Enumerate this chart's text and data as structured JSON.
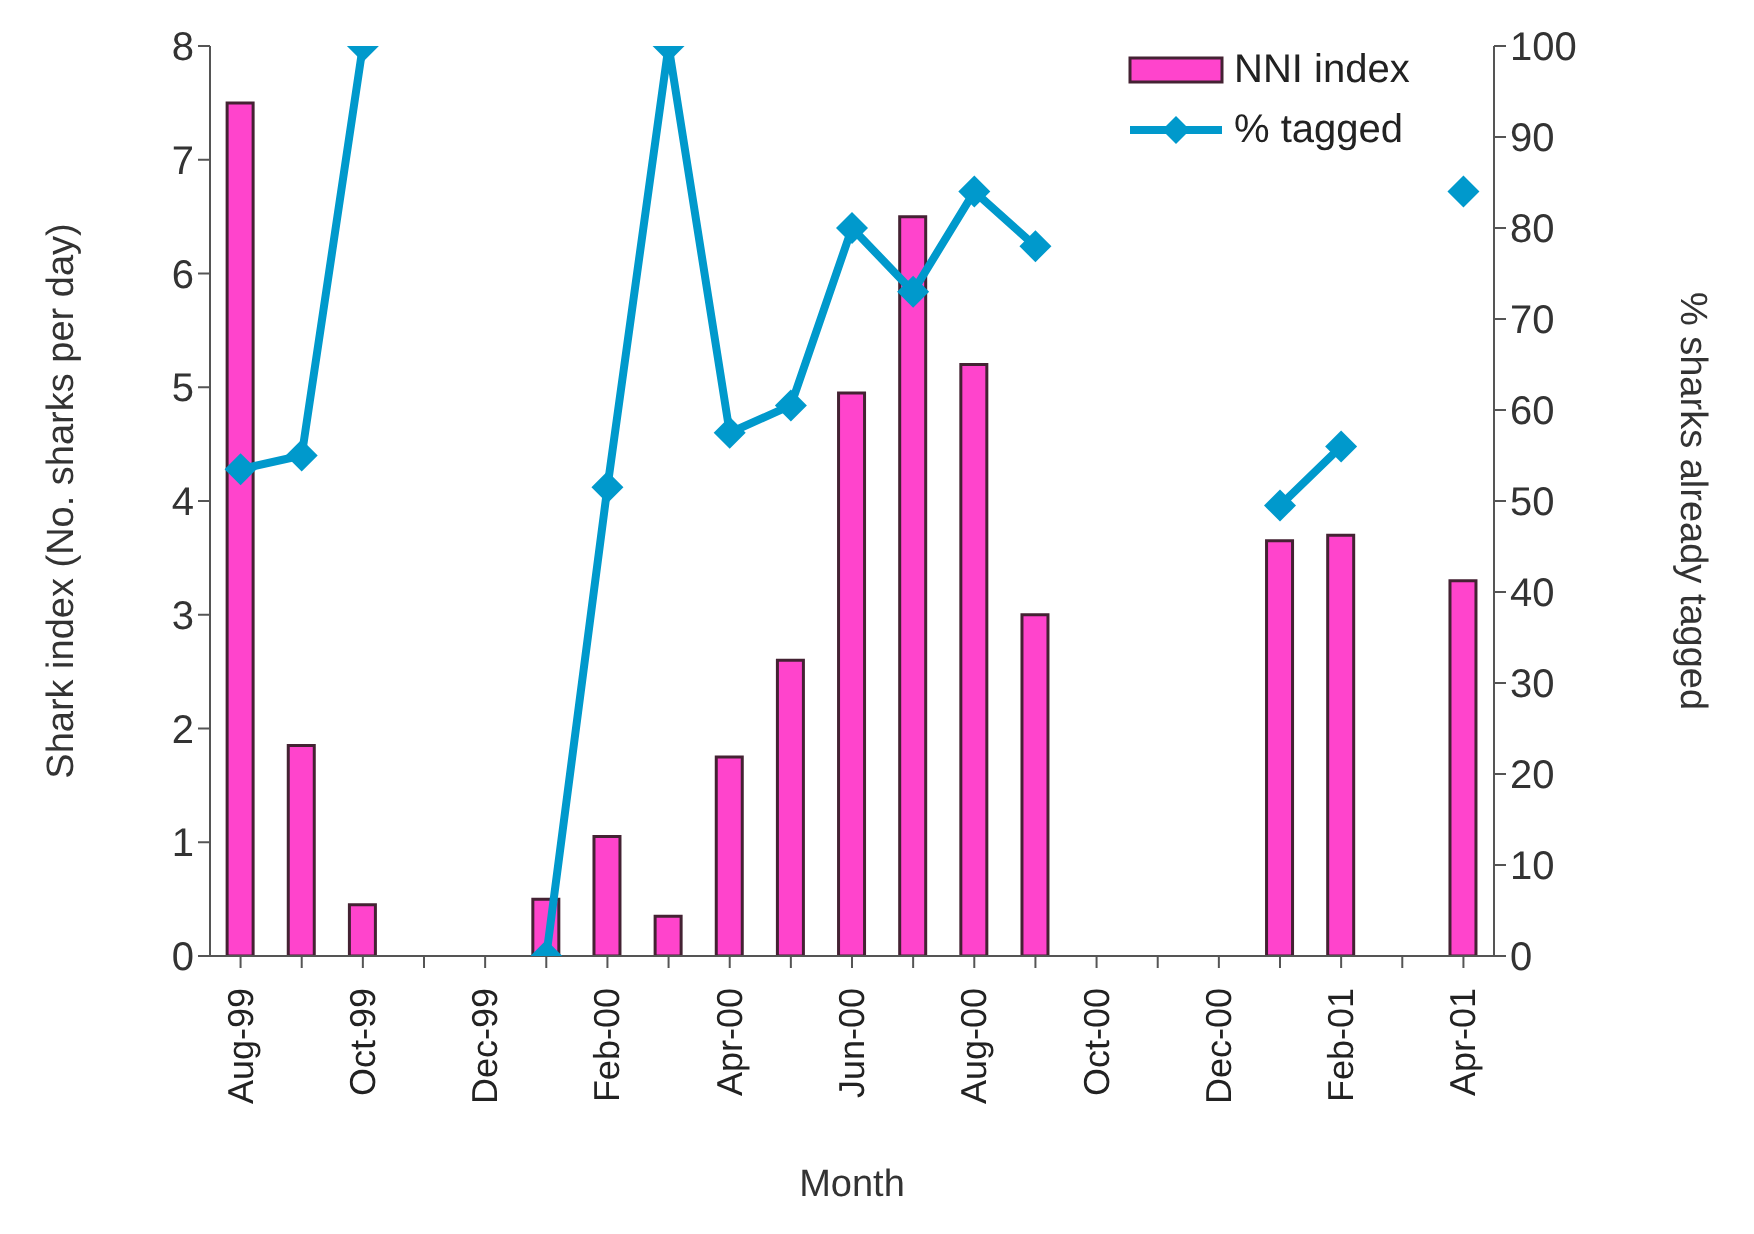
{
  "chart_data": {
    "type": "bar",
    "xlabel": "Month",
    "ylabel": "Shark index (No. sharks per day)",
    "y2label": "% sharks already tagged",
    "categories": [
      "Aug-99",
      null,
      "Oct-99",
      null,
      "Dec-99",
      null,
      "Feb-00",
      null,
      "Apr-00",
      null,
      "Jun-00",
      null,
      "Aug-00",
      null,
      "Oct-00",
      null,
      "Dec-00",
      null,
      "Feb-01",
      null,
      "Apr-01"
    ],
    "series": [
      {
        "name": "NNI index",
        "color": "#ff44cc",
        "values": [
          7.5,
          1.85,
          0.45,
          null,
          null,
          0.5,
          1.05,
          0.35,
          1.75,
          2.6,
          4.95,
          6.5,
          5.2,
          3.0,
          null,
          null,
          null,
          3.65,
          3.7,
          null,
          3.3
        ]
      },
      {
        "name": "% tagged",
        "type": "line",
        "axis": "y2",
        "color": "#0099cc",
        "marker": "diamond",
        "values": [
          53.5,
          55,
          100,
          null,
          null,
          0,
          51.5,
          100,
          57.5,
          60.5,
          80,
          73,
          84,
          78,
          null,
          null,
          null,
          49.5,
          56,
          null,
          84
        ]
      }
    ],
    "ylim": [
      0,
      8
    ],
    "yticks": [
      0,
      1,
      2,
      3,
      4,
      5,
      6,
      7,
      8
    ],
    "y2lim": [
      0,
      100
    ],
    "y2ticks": [
      0,
      10,
      20,
      30,
      40,
      50,
      60,
      70,
      80,
      90,
      100
    ],
    "grid": false,
    "legend": "top right"
  }
}
